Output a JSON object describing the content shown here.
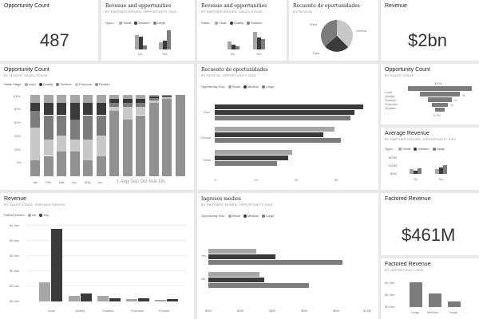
{
  "colors": {
    "c1": "#a6a6a6",
    "c2": "#3a3a3a",
    "c3": "#7c7c7c",
    "c4": "#c8c8c8",
    "c5": "#919191"
  },
  "opportunity_count": {
    "title": "Opportunity Count",
    "value": "487"
  },
  "tile_partner": {
    "title": "Revenue and opportunities",
    "subtitle": "BY PARTNER DRIVEN, OPPORTUNITY SIZE",
    "legend_title": "Oppo...",
    "legend": [
      "Small",
      "Medium",
      "Large"
    ],
    "categories": [
      "No",
      "Yes"
    ]
  },
  "tile_sales": {
    "title": "Revenue and opportunities",
    "subtitle": "BY PARTNER DRIVEN, SALES STAGE",
    "legend_title": "Sales...",
    "legend": [
      "Lead",
      "Qualify",
      "Solution"
    ],
    "categories": [
      "No",
      "Yes"
    ]
  },
  "tile_region_pie": {
    "title": "Recuento de oportunidades",
    "subtitle": "BY REGION",
    "labels": [
      "West",
      "Central",
      "East"
    ]
  },
  "revenue_kpi": {
    "title": "Revenue",
    "value": "$2bn"
  },
  "stacked": {
    "title": "Opportunity Count",
    "subtitle": "BY MONTH, SALES STAGE",
    "legend_title": "Sales Stage",
    "legend": [
      "Lead",
      "Qualify",
      "Solution",
      "Proposal",
      "Finalize"
    ],
    "yticks": [
      "100%",
      "80%",
      "60%",
      "40%",
      "20%",
      "0%"
    ],
    "months": [
      "Jan",
      "Feb",
      "Mar",
      "Apr",
      "May",
      "Jun"
    ],
    "months_overflow": "1 Aug Sep Oct Nov Dic"
  },
  "region_bar": {
    "title": "Recuento de oportunidades",
    "subtitle": "BY REGION, OPPORTUNITY SIZE",
    "legend_title": "Opportunity Size",
    "legend": [
      "Small",
      "Medium",
      "Large"
    ],
    "regions": [
      "East",
      "Central",
      "West"
    ],
    "xticks": [
      "0",
      "20",
      "40",
      "60"
    ]
  },
  "funnel": {
    "title": "Opportunity Count",
    "subtitle": "BY SALES STAGE",
    "top_label": "100%",
    "stages": [
      "Lead",
      "Qualify",
      "Solution",
      "Proposal",
      "Finalize"
    ],
    "pcts": [
      "",
      "%",
      "%",
      "%",
      ""
    ],
    "bottom_label": "5.2%"
  },
  "avg_revenue": {
    "title": "Average Revenue",
    "subtitle": "BY PARTNER DRIVEN, OPPORTUNITY SIZE",
    "legend_title": "Oppo...",
    "legend": [
      "Small",
      "Medium",
      "Large"
    ],
    "yticks": [
      "$20M",
      "$10M",
      "$0M"
    ],
    "categories": [
      "No",
      "Yes"
    ]
  },
  "revenue_chart": {
    "title": "Revenue",
    "subtitle": "BY SALES STAGE, PARTNER DRIVEN",
    "legend_title": "Partner Driven",
    "legend": [
      "No",
      "Yes"
    ],
    "yticks": [
      "$1.0bn",
      "$0.8bn",
      "$0.6bn",
      "$0.4bn",
      "$0.2bn",
      "$0.0bn"
    ],
    "stages": [
      "Lead",
      "Qualify",
      "Solution",
      "Proposal",
      "Finalize"
    ]
  },
  "center_bottom": {
    "title": "Ingresos medios",
    "subtitle": "BY PARTNER DRIVEN, OPPORTUNITY SIZE",
    "legend_title": "Opportunity Size",
    "legend": [
      "Small",
      "Medium",
      "Large"
    ],
    "categories": [
      "Yes",
      "No"
    ],
    "xticks": [
      "$0M",
      "$2M",
      "$4M",
      "$6M",
      "$8M",
      "$10M"
    ]
  },
  "factored_kpi": {
    "title": "Factored Revenue",
    "value": "$461M"
  },
  "factored_chart": {
    "title": "Factored Revenue",
    "subtitle": "BY OPPORTUNITY SIZE",
    "yticks": [
      "$0.2bn",
      "$0.1bn",
      "$0.0bn"
    ],
    "categories": [
      "Large",
      "Medium",
      "Small"
    ]
  }
}
